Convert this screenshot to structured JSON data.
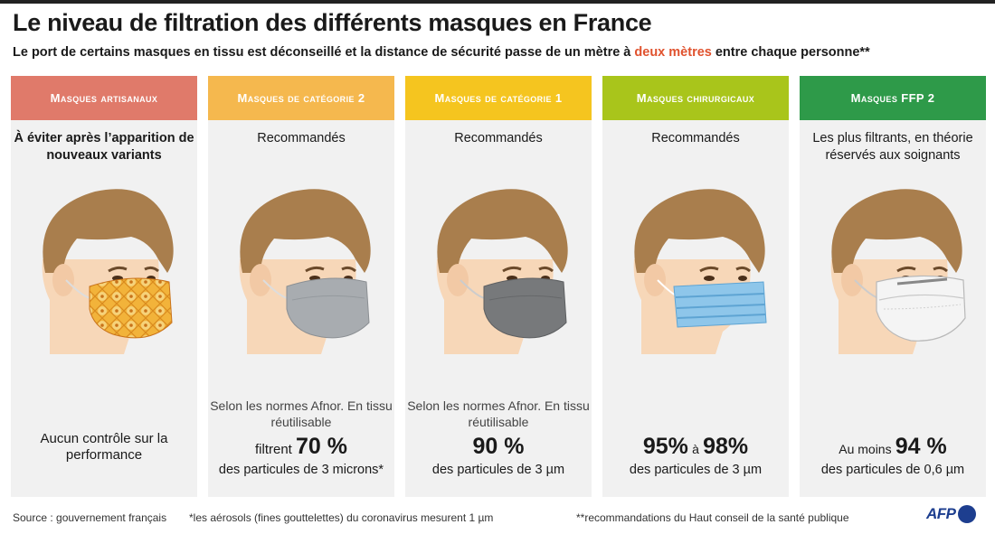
{
  "title": "Le niveau de filtration des différents masques en France",
  "subtitle": {
    "before": "Le port de certains masques en tissu est déconseillé et la distance de sécurité passe de un mètre à ",
    "highlight": "deux mètres",
    "after": " entre chaque personne**"
  },
  "columns": [
    {
      "header": "Masques artisanaux",
      "header_color": "#e07a6a",
      "status": "À éviter après l’apparition de nouveaux variants",
      "note": "Aucun contrôle sur la performance",
      "mask": "fabric-pattern-mask"
    },
    {
      "header": "Masques de catégorie 2",
      "header_color": "#f5b84e",
      "status": "Recommandés",
      "note": "Selon les normes Afnor. En tissu réutilisable",
      "stat_prefix": "filtrent",
      "stat_value": "70 %",
      "stat_desc": "des particules de 3 microns*",
      "mask": "light-gray-mask"
    },
    {
      "header": "Masques de catégorie 1",
      "header_color": "#f5c51f",
      "status": "Recommandés",
      "note": "Selon les normes Afnor. En tissu réutilisable",
      "stat_value": "90 %",
      "stat_desc": "des particules de 3 µm",
      "mask": "dark-gray-mask"
    },
    {
      "header": "Masques chirurgicaux",
      "header_color": "#a9c51b",
      "status": "Recommandés",
      "stat_value": "95%",
      "stat_join": "à",
      "stat_value2": "98%",
      "stat_desc": "des particules de 3 µm",
      "mask": "surgical-blue-mask"
    },
    {
      "header": "Masques FFP 2",
      "header_color": "#2e9a49",
      "status": "Les plus filtrants, en théorie réservés aux soignants",
      "stat_prefix": "Au moins",
      "stat_value": "94 %",
      "stat_desc": "des particules de 0,6 µm",
      "mask": "ffp2-white-mask"
    }
  ],
  "footer": {
    "source": "Source : gouvernement français",
    "note1": "*les aérosols (fines gouttelettes) du coronavirus mesurent 1 µm",
    "note2": "**recommandations du Haut conseil de la santé publique",
    "logo": "AFP"
  },
  "colors": {
    "skin": "#f7d7b8",
    "hair": "#a97e4d",
    "accent": "#e0522e"
  }
}
